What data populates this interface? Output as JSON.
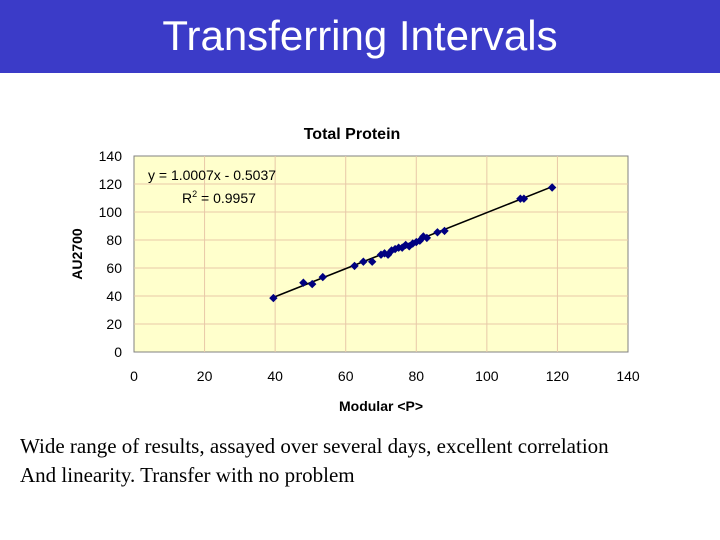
{
  "slide": {
    "title": "Transferring Intervals",
    "caption_lines": [
      "Wide range of results, assayed over several days, excellent correlation",
      "And linearity. Transfer with no problem"
    ]
  },
  "colors": {
    "title_bar": "#3b3bc8",
    "plot_bg": "#ffffcc",
    "grid": "#e8c8a8",
    "series": "#000080"
  },
  "chart_data": {
    "type": "scatter",
    "title": "Total Protein",
    "xlabel": "Modular <P>",
    "ylabel": "AU2700",
    "xlim": [
      0,
      140
    ],
    "ylim": [
      0,
      140
    ],
    "xticks": [
      0,
      20,
      40,
      60,
      80,
      100,
      120,
      140
    ],
    "yticks": [
      0,
      20,
      40,
      60,
      80,
      100,
      120,
      140
    ],
    "grid": true,
    "legend": "none",
    "equation": "y = 1.0007x - 0.5037",
    "r_squared_label": "R",
    "r_squared_exp": "2",
    "r_squared_value": " = 0.9957",
    "trendline": {
      "slope": 1.0007,
      "intercept": -0.5037,
      "x_range": [
        39.5,
        118.5
      ]
    },
    "series": [
      {
        "x": [
          39.5,
          48,
          50.5,
          53.5,
          62.5,
          65,
          67.5,
          70,
          71,
          72,
          73,
          74,
          75,
          76,
          77,
          78,
          79,
          80,
          81,
          82,
          83,
          86,
          88,
          109.5,
          110.5,
          118.5
        ],
        "y": [
          38.5,
          49.5,
          48.5,
          53.5,
          61.5,
          64.5,
          64.5,
          69.5,
          70.5,
          69.5,
          72.5,
          73.5,
          74.5,
          74.5,
          76.5,
          75.5,
          77.5,
          78.5,
          79.5,
          82.5,
          81.5,
          85.5,
          86.5,
          109.5,
          109.5,
          117.5
        ]
      }
    ]
  }
}
